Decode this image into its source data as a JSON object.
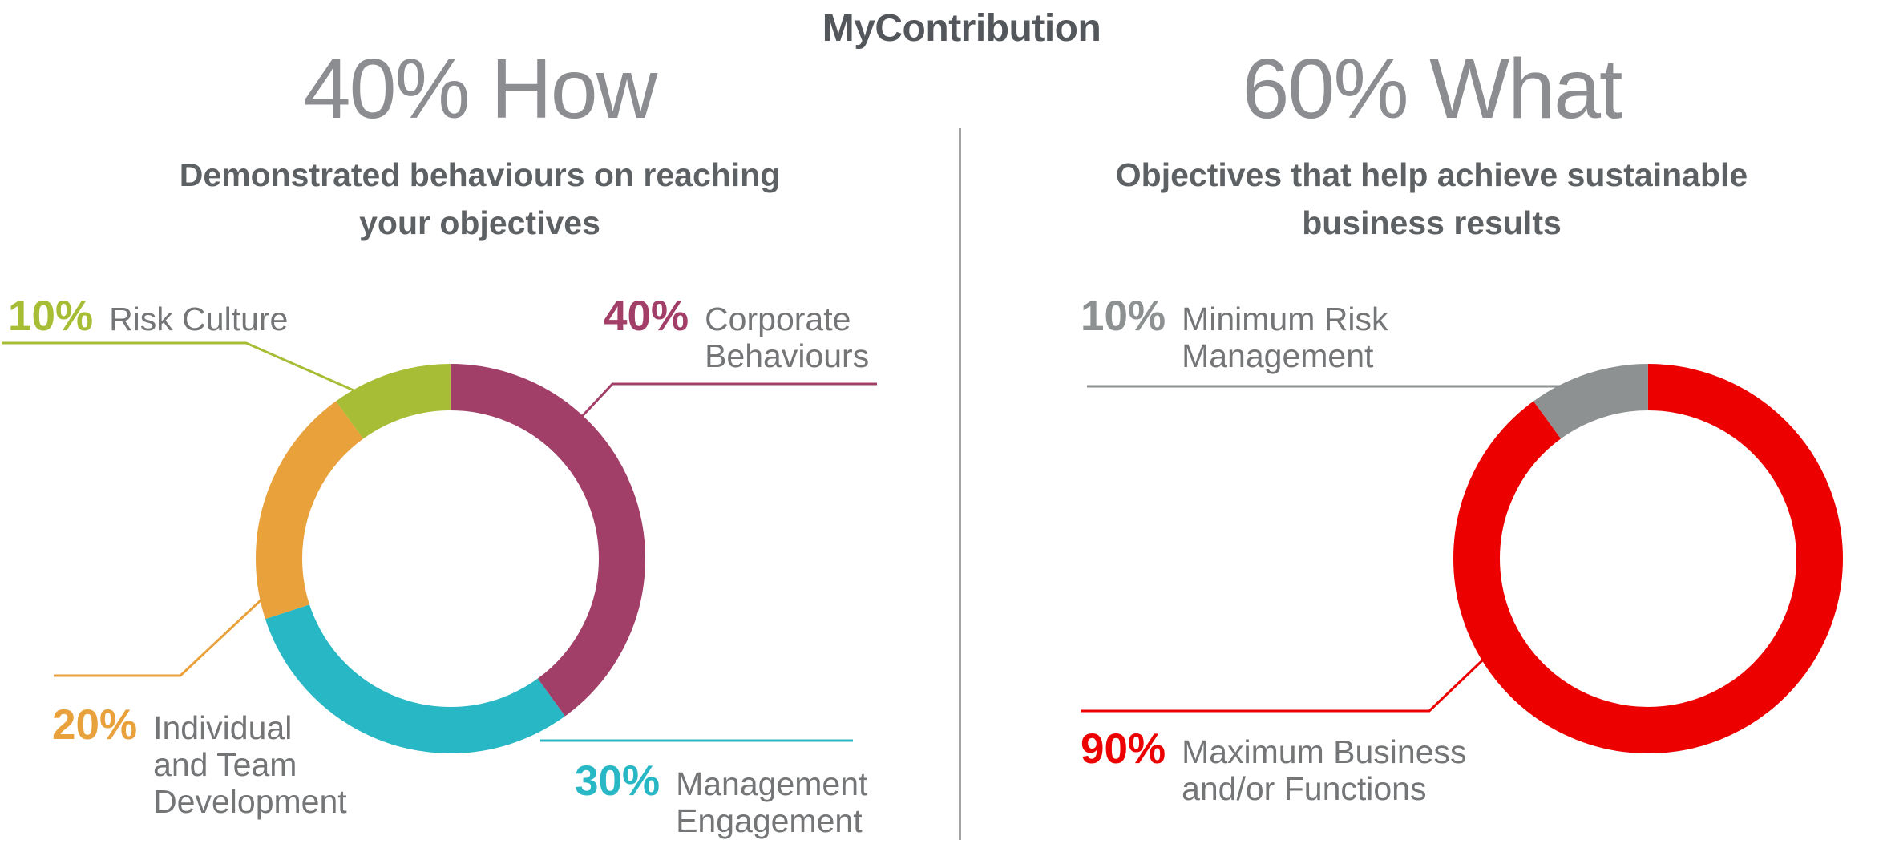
{
  "page_title": "MyContribution",
  "left_panel": {
    "heading": "40% How",
    "subtitle_lines": [
      "Demonstrated behaviours on reaching",
      "your objectives"
    ],
    "callouts": [
      {
        "pct": "10%",
        "lines": [
          "Risk Culture"
        ],
        "color": "#a8bd36"
      },
      {
        "pct": "40%",
        "lines": [
          "Corporate",
          "Behaviours"
        ],
        "color": "#a23f68"
      },
      {
        "pct": "20%",
        "lines": [
          "Individual",
          "and Team",
          "Development"
        ],
        "color": "#e9a13b"
      },
      {
        "pct": "30%",
        "lines": [
          "Management",
          "Engagement"
        ],
        "color": "#28b7c4"
      }
    ]
  },
  "right_panel": {
    "heading": "60% What",
    "subtitle_lines": [
      "Objectives that help achieve sustainable",
      "business results"
    ],
    "callouts": [
      {
        "pct": "10%",
        "lines": [
          "Minimum Risk",
          "Management"
        ],
        "color": "#8e9192"
      },
      {
        "pct": "90%",
        "lines": [
          "Maximum Business",
          "and/or Functions"
        ],
        "color": "#ec0000"
      }
    ]
  },
  "chart_data": [
    {
      "type": "pie",
      "donut": true,
      "title": "40% How",
      "subtitle": "Demonstrated behaviours on reaching your objectives",
      "labels": [
        "Corporate Behaviours",
        "Management Engagement",
        "Individual and Team Development",
        "Risk Culture"
      ],
      "values": [
        40,
        30,
        20,
        10
      ],
      "unit": "%",
      "colors": [
        "#a23f68",
        "#28b7c4",
        "#e9a13b",
        "#a8bd36"
      ],
      "start_angle": "top",
      "direction": "clockwise",
      "legend_position": "callouts"
    },
    {
      "type": "pie",
      "donut": true,
      "title": "60% What",
      "subtitle": "Objectives that help achieve sustainable business results",
      "labels": [
        "Maximum Business and/or Functions",
        "Minimum Risk Management"
      ],
      "values": [
        90,
        10
      ],
      "unit": "%",
      "colors": [
        "#ec0000",
        "#8e9192"
      ],
      "start_angle": "top",
      "direction": "clockwise",
      "legend_position": "callouts"
    }
  ]
}
